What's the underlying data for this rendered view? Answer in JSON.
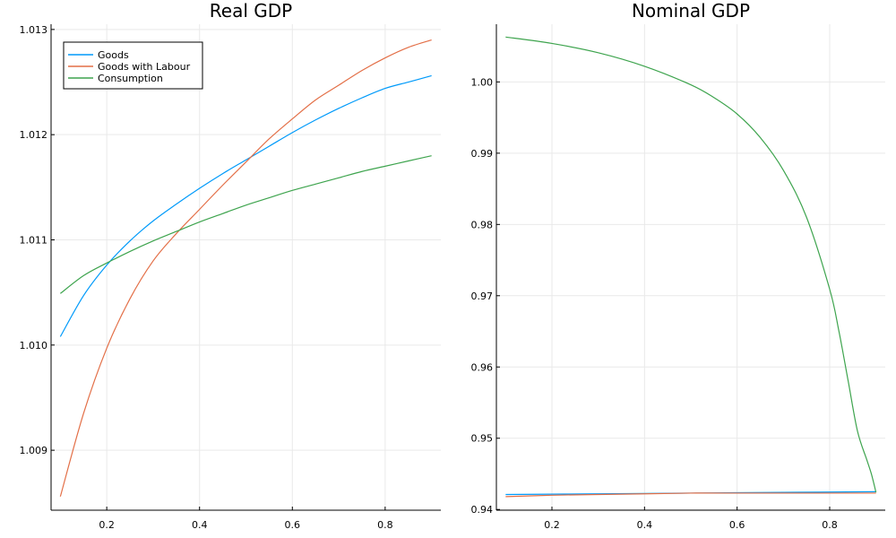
{
  "chart_data": [
    {
      "type": "line",
      "title": "Real GDP",
      "xlabel": "",
      "ylabel": "",
      "xlim": [
        0.08,
        0.92
      ],
      "ylim": [
        1.00843,
        1.01305
      ],
      "xticks": [
        0.2,
        0.4,
        0.6,
        0.8
      ],
      "xtick_labels": [
        "0.2",
        "0.4",
        "0.6",
        "0.8"
      ],
      "yticks": [
        1.009,
        1.01,
        1.011,
        1.012,
        1.013
      ],
      "ytick_labels": [
        "1.009",
        "1.010",
        "1.011",
        "1.012",
        "1.013"
      ],
      "grid": true,
      "legend": {
        "placement": "top-left",
        "entries": [
          "Goods",
          "Goods with Labour",
          "Consumption"
        ]
      },
      "series": [
        {
          "name": "Goods",
          "color": "#009AFA",
          "x": [
            0.1,
            0.15,
            0.2,
            0.25,
            0.3,
            0.35,
            0.4,
            0.45,
            0.5,
            0.55,
            0.6,
            0.65,
            0.7,
            0.75,
            0.8,
            0.85,
            0.9
          ],
          "y": [
            1.01008,
            1.01047,
            1.01076,
            1.01099,
            1.01118,
            1.01134,
            1.01149,
            1.01163,
            1.01176,
            1.01189,
            1.01202,
            1.01214,
            1.01225,
            1.01235,
            1.01244,
            1.0125,
            1.01256
          ]
        },
        {
          "name": "Goods with Labour",
          "color": "#E36F47",
          "x": [
            0.1,
            0.15,
            0.2,
            0.25,
            0.3,
            0.35,
            0.4,
            0.45,
            0.5,
            0.55,
            0.6,
            0.65,
            0.7,
            0.75,
            0.8,
            0.85,
            0.9
          ],
          "y": [
            1.00856,
            1.00935,
            1.00997,
            1.01044,
            1.0108,
            1.01106,
            1.01129,
            1.01152,
            1.01174,
            1.01196,
            1.01215,
            1.01233,
            1.01247,
            1.01261,
            1.01273,
            1.01283,
            1.0129
          ]
        },
        {
          "name": "Consumption",
          "color": "#3EA44E",
          "x": [
            0.1,
            0.15,
            0.2,
            0.25,
            0.3,
            0.35,
            0.4,
            0.45,
            0.5,
            0.55,
            0.6,
            0.65,
            0.7,
            0.75,
            0.8,
            0.85,
            0.9
          ],
          "y": [
            1.01049,
            1.01066,
            1.01078,
            1.01089,
            1.01099,
            1.01108,
            1.01117,
            1.01125,
            1.01133,
            1.0114,
            1.01147,
            1.01153,
            1.01159,
            1.01165,
            1.0117,
            1.01175,
            1.0118
          ]
        }
      ]
    },
    {
      "type": "line",
      "title": "Nominal GDP",
      "xlabel": "",
      "ylabel": "",
      "xlim": [
        0.08,
        0.92
      ],
      "ylim": [
        0.9399,
        1.0081
      ],
      "xticks": [
        0.2,
        0.4,
        0.6,
        0.8
      ],
      "xtick_labels": [
        "0.2",
        "0.4",
        "0.6",
        "0.8"
      ],
      "yticks": [
        0.94,
        0.95,
        0.96,
        0.97,
        0.98,
        0.99,
        1.0
      ],
      "ytick_labels": [
        "0.94",
        "0.95",
        "0.96",
        "0.97",
        "0.98",
        "0.99",
        "1.00"
      ],
      "grid": true,
      "series": [
        {
          "name": "Goods",
          "color": "#009AFA",
          "x": [
            0.1,
            0.3,
            0.5,
            0.7,
            0.9
          ],
          "y": [
            0.9421,
            0.9422,
            0.9423,
            0.9424,
            0.9425
          ]
        },
        {
          "name": "Goods with Labour",
          "color": "#E36F47",
          "x": [
            0.1,
            0.2,
            0.3,
            0.4,
            0.5,
            0.6,
            0.7,
            0.8,
            0.9
          ],
          "y": [
            0.9418,
            0.942,
            0.9421,
            0.9422,
            0.9423,
            0.9423,
            0.9423,
            0.9423,
            0.9423
          ]
        },
        {
          "name": "Consumption",
          "color": "#3EA44E",
          "x": [
            0.1,
            0.2,
            0.3,
            0.4,
            0.5,
            0.55,
            0.6,
            0.65,
            0.7,
            0.75,
            0.8,
            0.82,
            0.84,
            0.86,
            0.88,
            0.89,
            0.9
          ],
          "y": [
            1.0063,
            1.0054,
            1.0041,
            1.0022,
            0.9996,
            0.9978,
            0.9955,
            0.9922,
            0.9876,
            0.981,
            0.9709,
            0.965,
            0.958,
            0.951,
            0.947,
            0.945,
            0.9424
          ]
        }
      ]
    }
  ]
}
